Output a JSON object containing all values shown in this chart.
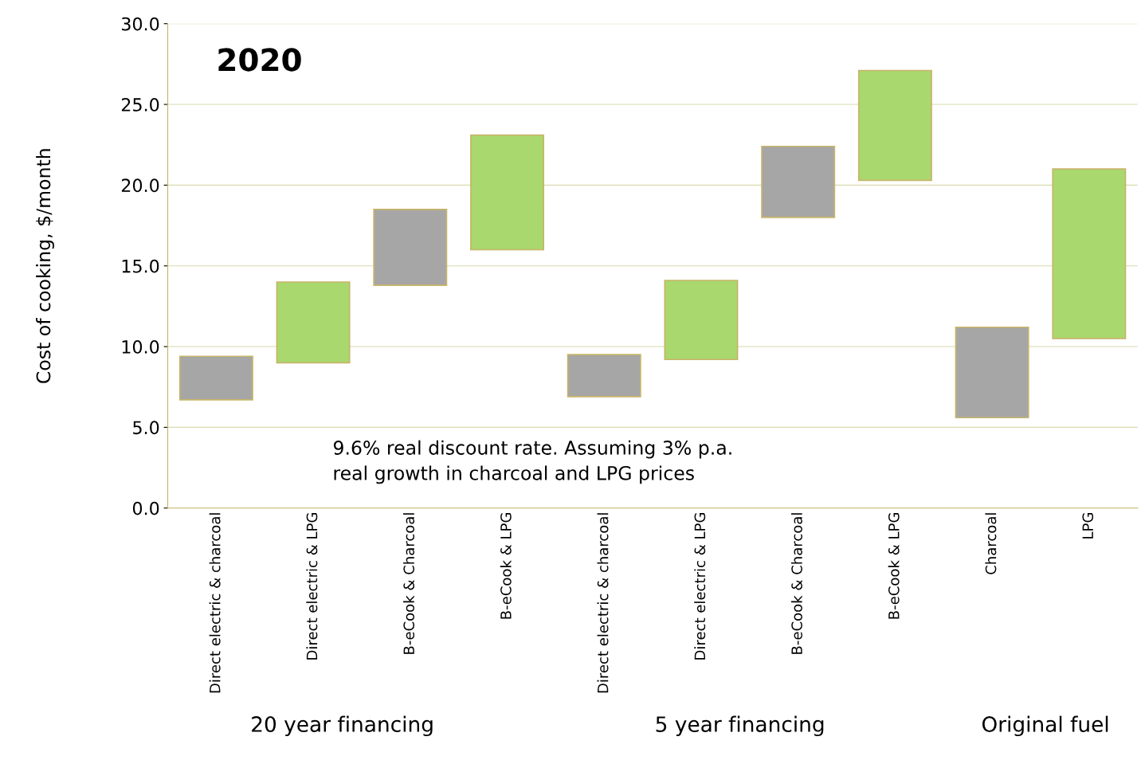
{
  "chart_data": {
    "type": "bar",
    "title": "2020",
    "ylabel": "Cost of cooking, $/month",
    "categories": [
      "Direct electric & charcoal",
      "Direct electric & LPG",
      "B-eCook & Charcoal",
      "B-eCook & LPG",
      "Direct electric & charcoal",
      "Direct electric & LPG",
      "B-eCook & Charcoal",
      "B-eCook & LPG",
      "Charcoal",
      "LPG"
    ],
    "base": [
      6.7,
      9.0,
      13.8,
      16.0,
      6.9,
      9.2,
      18.0,
      20.3,
      5.6,
      10.5
    ],
    "values": [
      2.7,
      5.0,
      4.7,
      7.1,
      2.6,
      4.9,
      4.4,
      6.8,
      5.6,
      10.5
    ],
    "colors": [
      "#a6a6a6",
      "#a9d86e",
      "#a6a6a6",
      "#a9d86e",
      "#a6a6a6",
      "#a9d86e",
      "#a6a6a6",
      "#a9d86e",
      "#a6a6a6",
      "#a9d86e"
    ],
    "ylim": [
      0,
      30
    ],
    "yticks": [
      {
        "value": 0,
        "label": "0.0"
      },
      {
        "value": 5,
        "label": "5.0"
      },
      {
        "value": 10,
        "label": "10.0"
      },
      {
        "value": 15,
        "label": "15.0"
      },
      {
        "value": 20,
        "label": "20.0"
      },
      {
        "value": 25,
        "label": "25.0"
      },
      {
        "value": 30,
        "label": "30.0"
      }
    ],
    "grid": "y",
    "annotations": [
      "9.6% real discount rate. Assuming 3% p.a.\nreal growth in charcoal and LPG prices",
      "20 year financing",
      "5 year financing",
      "Original fuel"
    ]
  }
}
